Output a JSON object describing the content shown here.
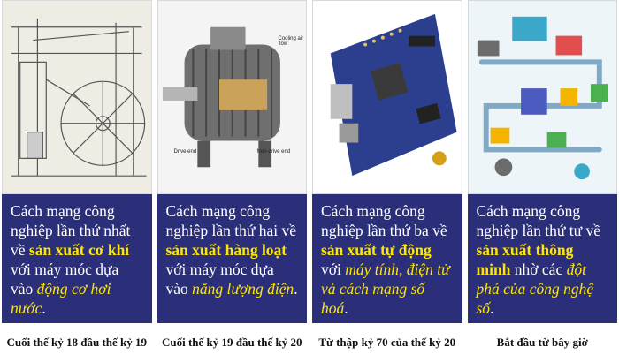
{
  "colors": {
    "caption_bg": "#2b2f7a",
    "caption_text": "#ffffff",
    "highlight": "#ffe600"
  },
  "panels": [
    {
      "image_icon": "steam-engine-illustration",
      "caption": {
        "t1": "Cách mạng công nghiệp lần thứ nhất về ",
        "h1": "sản xuất cơ khí",
        "t2": " với máy móc dựa vào ",
        "i1": "động cơ hơi nước",
        "t3": "."
      },
      "period": "Cuối thế kỷ 18 đầu thế kỷ 19"
    },
    {
      "image_icon": "electric-motor-illustration",
      "image_labels": [
        "Cooling air flow",
        "Drive end",
        "Non-drive end"
      ],
      "caption": {
        "t1": "Cách mạng công nghiệp lần thứ hai về ",
        "h1": "sản xuất hàng loạt",
        "t2": " với máy móc dựa vào ",
        "i1": "năng lượng điện",
        "t3": "."
      },
      "period": "Cuối thế kỷ 19 đầu thế kỷ 20"
    },
    {
      "image_icon": "circuit-board-illustration",
      "caption": {
        "t1": "Cách mạng công nghiệp lần thứ ba về ",
        "h1": "sản xuất tự động",
        "t2": " với ",
        "i1": "máy tính, điện tử và cách mạng số hoá",
        "t3": "."
      },
      "period": "Từ thập kỷ 70 của thế kỷ 20"
    },
    {
      "image_icon": "smart-factory-illustration",
      "caption": {
        "t1": "Cách mạng công nghiệp lần thứ tư về ",
        "h1": "sản xuất thông minh",
        "t2": " nhờ các ",
        "i1": "đột phá của công nghệ số",
        "t3": "."
      },
      "period": "Bắt đầu từ bây giờ"
    }
  ]
}
